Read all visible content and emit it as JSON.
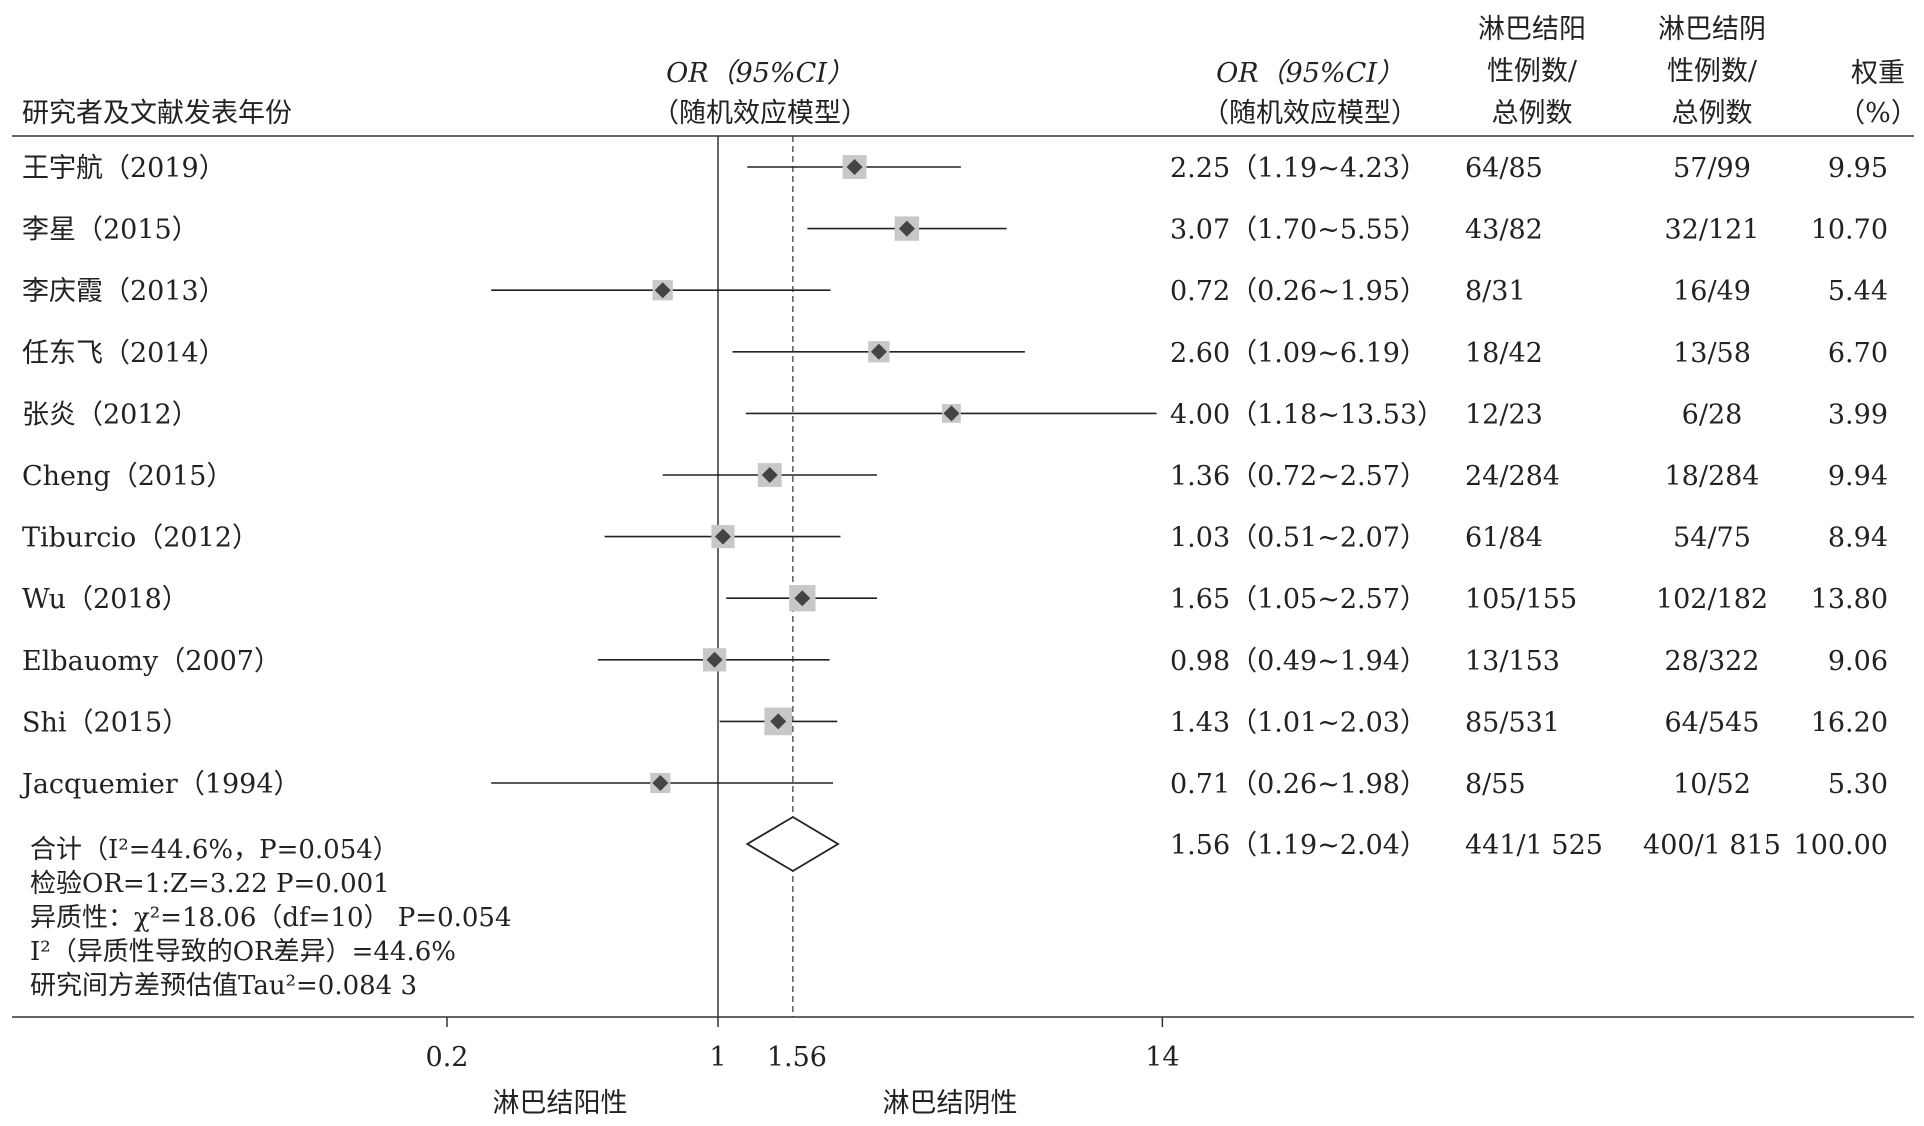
{
  "header": {
    "study_col": "研究者及文献发表年份",
    "or_plot_title": [
      "OR（95%CI）",
      "（随机效应模型）"
    ],
    "or_text_title": [
      "OR（95%CI）",
      "（随机效应模型）"
    ],
    "pos_title": [
      "淋巴结阳",
      "性例数/",
      "总例数"
    ],
    "neg_title": [
      "淋巴结阴",
      "性例数/",
      "总例数"
    ],
    "weight_title": [
      "权重",
      "（%）"
    ]
  },
  "stats_lines": [
    "合计（I²=44.6%，P=0.054）",
    "检验OR=1:Z=3.22  P=0.001",
    "异质性：χ²=18.06（df=10） P=0.054",
    "I²（异质性导致的OR差异）=44.6%",
    "研究间方差预估值Tau²=0.084 3"
  ],
  "axis": {
    "ticks": [
      0.2,
      1,
      14
    ],
    "tick_labels": [
      "0.2",
      "1",
      "14"
    ],
    "ref_value": 1.56,
    "ref_label": "1.56",
    "left_label": "淋巴结阳性",
    "right_label": "淋巴结阴性"
  },
  "chart_data": {
    "type": "forest",
    "scale": "log",
    "xlim": [
      0.2,
      14
    ],
    "null_line": 1,
    "studies": [
      {
        "name": "王宇航（2019）",
        "or": 2.25,
        "lo": 1.19,
        "hi": 4.23,
        "ci_text": "2.25（1.19~4.23）",
        "pos": "64/85",
        "neg": "57/99",
        "weight": 9.95,
        "weight_text": "9.95"
      },
      {
        "name": "李星（2015）",
        "or": 3.07,
        "lo": 1.7,
        "hi": 5.55,
        "ci_text": "3.07（1.70~5.55）",
        "pos": "43/82",
        "neg": "32/121",
        "weight": 10.7,
        "weight_text": "10.70"
      },
      {
        "name": "李庆霞（2013）",
        "or": 0.72,
        "lo": 0.26,
        "hi": 1.95,
        "ci_text": "0.72（0.26~1.95）",
        "pos": "8/31",
        "neg": "16/49",
        "weight": 5.44,
        "weight_text": "5.44"
      },
      {
        "name": "任东飞（2014）",
        "or": 2.6,
        "lo": 1.09,
        "hi": 6.19,
        "ci_text": "2.60（1.09~6.19）",
        "pos": "18/42",
        "neg": "13/58",
        "weight": 6.7,
        "weight_text": "6.70"
      },
      {
        "name": "张炎（2012）",
        "or": 4.0,
        "lo": 1.18,
        "hi": 13.53,
        "ci_text": "4.00（1.18~13.53）",
        "pos": "12/23",
        "neg": "6/28",
        "weight": 3.99,
        "weight_text": "3.99"
      },
      {
        "name": "Cheng（2015）",
        "or": 1.36,
        "lo": 0.72,
        "hi": 2.57,
        "ci_text": "1.36（0.72~2.57）",
        "pos": "24/284",
        "neg": "18/284",
        "weight": 9.94,
        "weight_text": "9.94"
      },
      {
        "name": "Tiburcio（2012）",
        "or": 1.03,
        "lo": 0.51,
        "hi": 2.07,
        "ci_text": "1.03（0.51~2.07）",
        "pos": "61/84",
        "neg": "54/75",
        "weight": 8.94,
        "weight_text": "8.94"
      },
      {
        "name": "Wu（2018）",
        "or": 1.65,
        "lo": 1.05,
        "hi": 2.57,
        "ci_text": "1.65（1.05~2.57）",
        "pos": "105/155",
        "neg": "102/182",
        "weight": 13.8,
        "weight_text": "13.80"
      },
      {
        "name": "Elbauomy（2007）",
        "or": 0.98,
        "lo": 0.49,
        "hi": 1.94,
        "ci_text": "0.98（0.49~1.94）",
        "pos": "13/153",
        "neg": "28/322",
        "weight": 9.06,
        "weight_text": "9.06"
      },
      {
        "name": "Shi（2015）",
        "or": 1.43,
        "lo": 1.01,
        "hi": 2.03,
        "ci_text": "1.43（1.01~2.03）",
        "pos": "85/531",
        "neg": "64/545",
        "weight": 16.2,
        "weight_text": "16.20"
      },
      {
        "name": "Jacquemier（1994）",
        "or": 0.71,
        "lo": 0.26,
        "hi": 1.98,
        "ci_text": "0.71（0.26~1.98）",
        "pos": "8/55",
        "neg": "10/52",
        "weight": 5.3,
        "weight_text": "5.30"
      }
    ],
    "pooled": {
      "or": 1.56,
      "lo": 1.19,
      "hi": 2.04,
      "ci_text": "1.56（1.19~2.04）",
      "pos": "441/1 525",
      "neg": "400/1 815",
      "weight_text": "100.00"
    }
  }
}
